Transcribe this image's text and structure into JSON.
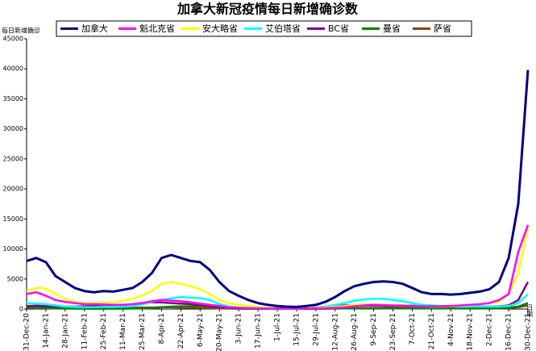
{
  "chart_data": {
    "type": "line",
    "title": "加拿大新冠疫情每日新增确诊数",
    "y_label": "每日新增确诊",
    "x_label": "日期",
    "categories": [
      "31-Dec-20",
      null,
      "14-Jan-21",
      null,
      "28-Jan-21",
      null,
      "11-Feb-21",
      null,
      "25-Feb-21",
      null,
      "11-Mar-21",
      null,
      "25-Mar-21",
      null,
      "8-Apr-21",
      null,
      "22-Apr-21",
      null,
      "6-May-21",
      null,
      "20-May-21",
      null,
      "3-Jun-21",
      null,
      "17-Jun-21",
      null,
      "1-Jul-21",
      null,
      "15-Jul-21",
      null,
      "29-Jul-21",
      null,
      "12-Aug-21",
      null,
      "26-Aug-21",
      null,
      "9-Sep-21",
      null,
      "23-Sep-21",
      null,
      "7-Oct-21",
      null,
      "21-Oct-21",
      null,
      "4-Nov-21",
      null,
      "18-Nov-21",
      null,
      "2-Dec-21",
      null,
      "16-Dec-21",
      null,
      "30-Dec-21"
    ],
    "ylim": [
      0,
      45000
    ],
    "yticks": [
      0,
      5000,
      10000,
      15000,
      20000,
      25000,
      30000,
      35000,
      40000,
      45000
    ],
    "series": [
      {
        "name": "加拿大",
        "color": "#000080",
        "values": [
          8000,
          8500,
          7800,
          5500,
          4500,
          3500,
          3000,
          2800,
          3000,
          2900,
          3200,
          3500,
          4500,
          6000,
          8500,
          9000,
          8500,
          8000,
          7800,
          6500,
          4500,
          3000,
          2200,
          1500,
          1000,
          700,
          500,
          400,
          350,
          500,
          700,
          1200,
          2000,
          3000,
          3800,
          4200,
          4500,
          4600,
          4500,
          4200,
          3500,
          2800,
          2500,
          2500,
          2400,
          2500,
          2700,
          2900,
          3300,
          4500,
          8500,
          17500,
          39800
        ]
      },
      {
        "name": "魁北克省",
        "color": "#ff00ff",
        "values": [
          2500,
          2800,
          2200,
          1500,
          1200,
          1000,
          800,
          800,
          750,
          700,
          700,
          800,
          1000,
          1300,
          1500,
          1400,
          1300,
          1100,
          900,
          700,
          500,
          300,
          200,
          150,
          120,
          100,
          90,
          90,
          80,
          90,
          100,
          150,
          200,
          300,
          450,
          600,
          700,
          650,
          600,
          550,
          500,
          450,
          450,
          450,
          500,
          600,
          700,
          800,
          1000,
          1500,
          2500,
          9500,
          14000
        ]
      },
      {
        "name": "安大略省",
        "color": "#ffff00",
        "values": [
          3000,
          3500,
          3400,
          2500,
          1700,
          1200,
          1000,
          1000,
          1100,
          1100,
          1400,
          1700,
          2300,
          3000,
          4200,
          4500,
          4200,
          3800,
          3300,
          2500,
          1500,
          1000,
          700,
          500,
          300,
          200,
          180,
          170,
          150,
          160,
          170,
          250,
          350,
          500,
          700,
          750,
          750,
          700,
          650,
          600,
          500,
          450,
          400,
          400,
          450,
          550,
          650,
          800,
          1000,
          1200,
          2500,
          6000,
          13500
        ]
      },
      {
        "name": "艾伯塔省",
        "color": "#00ffff",
        "values": [
          1000,
          900,
          800,
          600,
          400,
          350,
          300,
          300,
          350,
          350,
          400,
          500,
          800,
          1200,
          1500,
          1800,
          2000,
          1900,
          1800,
          1500,
          800,
          400,
          250,
          150,
          100,
          80,
          50,
          50,
          60,
          100,
          200,
          400,
          700,
          1000,
          1400,
          1600,
          1700,
          1700,
          1500,
          1300,
          1000,
          700,
          600,
          500,
          450,
          400,
          400,
          400,
          400,
          400,
          500,
          1000,
          2500
        ]
      },
      {
        "name": "BC省",
        "color": "#800080",
        "values": [
          500,
          550,
          500,
          450,
          400,
          400,
          450,
          500,
          550,
          600,
          650,
          800,
          1000,
          1100,
          1100,
          1000,
          900,
          800,
          700,
          500,
          350,
          250,
          180,
          150,
          100,
          80,
          60,
          80,
          100,
          150,
          250,
          400,
          500,
          600,
          700,
          700,
          650,
          600,
          550,
          600,
          550,
          500,
          500,
          500,
          450,
          450,
          400,
          400,
          400,
          450,
          600,
          1500,
          4500
        ]
      },
      {
        "name": "曼省",
        "color": "#008000",
        "values": [
          200,
          180,
          150,
          100,
          80,
          70,
          70,
          60,
          60,
          60,
          70,
          80,
          100,
          150,
          300,
          400,
          450,
          450,
          500,
          450,
          300,
          200,
          100,
          60,
          50,
          40,
          20,
          20,
          20,
          20,
          30,
          50,
          80,
          100,
          120,
          120,
          120,
          100,
          100,
          100,
          100,
          100,
          100,
          100,
          100,
          100,
          100,
          100,
          120,
          150,
          250,
          400,
          1000
        ]
      },
      {
        "name": "萨省",
        "color": "#8b4513",
        "values": [
          250,
          250,
          250,
          200,
          200,
          150,
          150,
          150,
          150,
          150,
          200,
          200,
          250,
          250,
          300,
          300,
          250,
          250,
          200,
          150,
          100,
          80,
          60,
          50,
          40,
          30,
          20,
          30,
          40,
          60,
          100,
          200,
          300,
          400,
          450,
          500,
          500,
          450,
          400,
          300,
          250,
          200,
          150,
          100,
          100,
          100,
          100,
          100,
          100,
          100,
          150,
          300,
          600
        ]
      }
    ]
  }
}
